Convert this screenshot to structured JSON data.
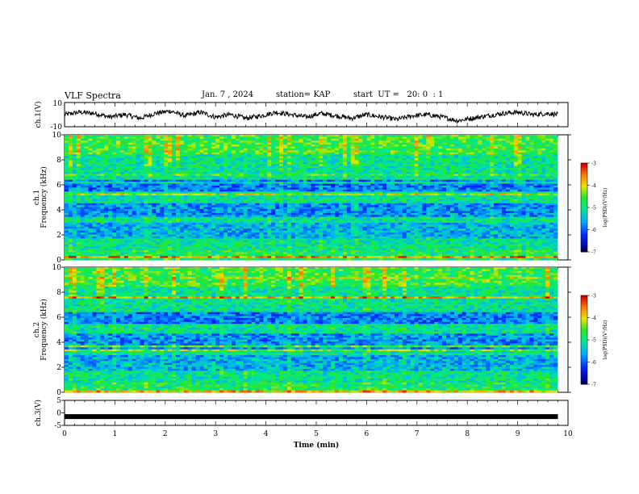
{
  "header": {
    "title": "VLF Spectra",
    "date": "Jan. 7 , 2024",
    "station": "station= KAP",
    "start_ut": "start  UT =   20: 0  : 1"
  },
  "chart_data": [
    {
      "type": "line",
      "ylabel": "ch.1(V)",
      "ylim": [
        -10,
        10
      ],
      "yticks": [
        "10",
        "-10"
      ],
      "xlim": [
        0,
        10
      ],
      "series": [
        {
          "values_description_free": true,
          "x": [
            0,
            0.3,
            0.6,
            0.9,
            1.2,
            1.5,
            1.8,
            2.1,
            2.4,
            2.7,
            3.0,
            3.3,
            3.6,
            3.9,
            4.2,
            4.5,
            4.8,
            5.1,
            5.4,
            5.7,
            6.0,
            6.3,
            6.6,
            6.9,
            7.2,
            7.5,
            7.8,
            8.1,
            8.4,
            8.7,
            9.0,
            9.3,
            9.6,
            9.8
          ],
          "y": [
            0,
            2,
            1,
            -2,
            0,
            -3,
            1,
            3,
            -1,
            2,
            -2,
            0,
            -3,
            -1,
            2,
            0,
            -2,
            1,
            -1,
            -3,
            0,
            -2,
            -4,
            -1,
            0,
            -2,
            -5,
            -3,
            -1,
            1,
            2,
            0,
            1,
            0
          ]
        }
      ]
    },
    {
      "type": "heatmap",
      "ylabel": "ch.1",
      "ylabel2": "Frequency (kHz)",
      "ylim": [
        0,
        10
      ],
      "yticks": [
        "0",
        "2",
        "4",
        "6",
        "8",
        "10"
      ],
      "colorbar": {
        "label": "log(PSD)(V²/Hz)",
        "ticks": [
          "-3",
          "-4",
          "-5",
          "-6",
          "-7"
        ],
        "range": [
          -7,
          -3
        ]
      }
    },
    {
      "type": "heatmap",
      "ylabel": "ch.2",
      "ylabel2": "Frequency (kHz)",
      "ylim": [
        0,
        10
      ],
      "yticks": [
        "0",
        "2",
        "4",
        "6",
        "8",
        "10"
      ],
      "colorbar": {
        "label": "log(PSD)(V²/Hz)",
        "ticks": [
          "-3",
          "-4",
          "-5",
          "-6",
          "-7"
        ],
        "range": [
          -7,
          -3
        ]
      }
    },
    {
      "type": "line",
      "ylabel": "ch.3(V)",
      "ylim": [
        -5,
        5
      ],
      "yticks": [
        "5",
        "0",
        "-5"
      ],
      "xlabel": "Time  (min)",
      "xlim": [
        0,
        10
      ],
      "xticks": [
        "0",
        "1",
        "2",
        "3",
        "4",
        "5",
        "6",
        "7",
        "8",
        "9",
        "10"
      ],
      "series": [
        {
          "x": [
            0,
            9.8
          ],
          "y": [
            -1.5,
            -1.5
          ]
        }
      ]
    }
  ]
}
